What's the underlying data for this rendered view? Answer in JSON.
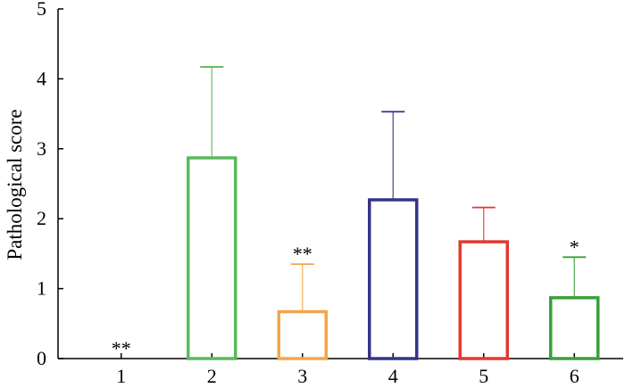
{
  "chart_data": {
    "type": "bar",
    "categories": [
      "1",
      "2",
      "3",
      "4",
      "5",
      "6"
    ],
    "values": [
      0,
      2.87,
      0.67,
      2.27,
      1.67,
      0.87
    ],
    "error_upper": [
      0,
      4.17,
      1.35,
      3.53,
      2.16,
      1.45
    ],
    "significance": [
      "**",
      "",
      "**",
      "",
      "",
      "*"
    ],
    "colors": [
      "#000000",
      "#5cb85c",
      "#f4a54a",
      "#35348a",
      "#e03a2f",
      "#3aa03a"
    ],
    "title": "",
    "xlabel": "",
    "ylabel": "Pathological score",
    "ylim": [
      0,
      5
    ],
    "yticks": [
      "0",
      "1",
      "2",
      "3",
      "4",
      "5"
    ],
    "grid": false,
    "bar_fill": "none"
  }
}
